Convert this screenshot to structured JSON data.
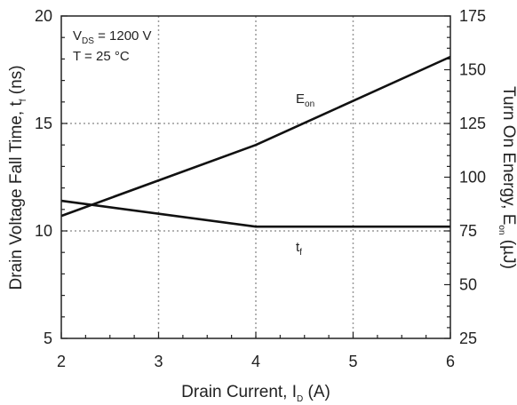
{
  "chart_data": {
    "type": "line",
    "xlabel": {
      "main": "Drain Current, I",
      "sub": "D",
      "unit": " (A)"
    },
    "ylabel_left": {
      "main": "Drain Voltage Fall Time, t",
      "sub": "f",
      "unit": " (ns)"
    },
    "ylabel_right": {
      "main": "Turn On Energy, E",
      "sub": "on",
      "unit": " (µJ)"
    },
    "xlim": [
      2,
      6
    ],
    "ylim_left": [
      5,
      20
    ],
    "ylim_right": [
      25,
      175
    ],
    "x_ticks": [
      2,
      3,
      4,
      5,
      6
    ],
    "y_ticks_left": [
      5,
      10,
      15,
      20
    ],
    "y_ticks_right": [
      25,
      50,
      75,
      100,
      125,
      150,
      175
    ],
    "grid": true,
    "annotations": {
      "vds": {
        "main": "V",
        "sub": "DS",
        "rest": " = 1200 V"
      },
      "temp": {
        "text": "T = 25 °C"
      }
    },
    "series": [
      {
        "label": {
          "main": "E",
          "sub": "on"
        },
        "axis": "right",
        "color": "#111111",
        "points": [
          [
            2,
            82
          ],
          [
            4,
            115
          ],
          [
            6,
            156
          ]
        ]
      },
      {
        "label": {
          "main": "t",
          "sub": "f"
        },
        "axis": "left",
        "color": "#111111",
        "points": [
          [
            2,
            11.4
          ],
          [
            4,
            10.2
          ],
          [
            6,
            10.2
          ]
        ]
      }
    ]
  }
}
